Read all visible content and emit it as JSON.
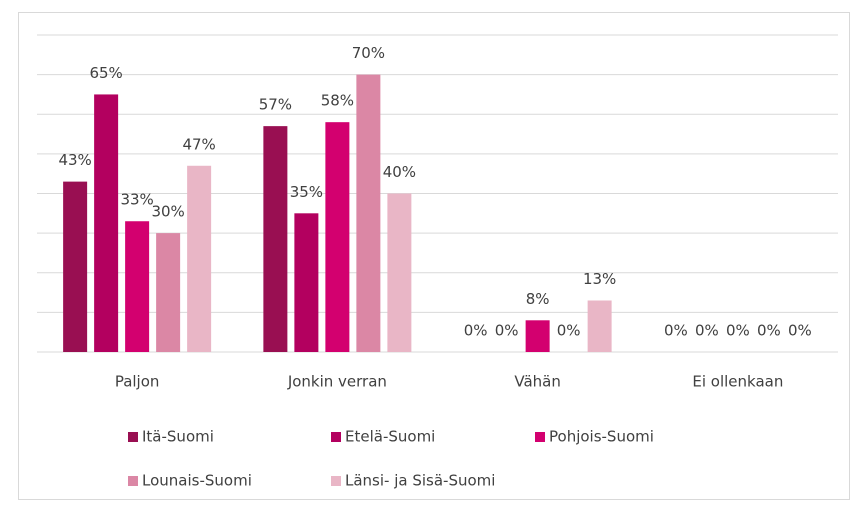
{
  "chart_data": {
    "type": "bar",
    "categories": [
      "Paljon",
      "Jonkin verran",
      "Vähän",
      "Ei ollenkaan"
    ],
    "series": [
      {
        "name": "Itä-Suomi",
        "color": "#990f52",
        "values": [
          43,
          57,
          0,
          0
        ],
        "value_labels": [
          "43%",
          "57%",
          "0%",
          "0%"
        ]
      },
      {
        "name": "Etelä-Suomi",
        "color": "#b3005f",
        "values": [
          65,
          35,
          0,
          0
        ],
        "value_labels": [
          "65%",
          "35%",
          "0%",
          "0%"
        ]
      },
      {
        "name": "Pohjois-Suomi",
        "color": "#d3006f",
        "values": [
          33,
          58,
          8,
          0
        ],
        "value_labels": [
          "33%",
          "58%",
          "8%",
          "0%"
        ]
      },
      {
        "name": "Lounais-Suomi",
        "color": "#db87a5",
        "values": [
          30,
          70,
          0,
          0
        ],
        "value_labels": [
          "30%",
          "70%",
          "0%",
          "0%"
        ]
      },
      {
        "name": "Länsi- ja Sisä-Suomi",
        "color": "#e9b6c6",
        "values": [
          47,
          40,
          13,
          0
        ],
        "value_labels": [
          "47%",
          "40%",
          "13%",
          "0%"
        ]
      }
    ],
    "ylim": [
      0,
      80
    ],
    "yticks": [
      0,
      10,
      20,
      30,
      40,
      50,
      60,
      70,
      80
    ],
    "grid": true,
    "legend": "bottom"
  }
}
